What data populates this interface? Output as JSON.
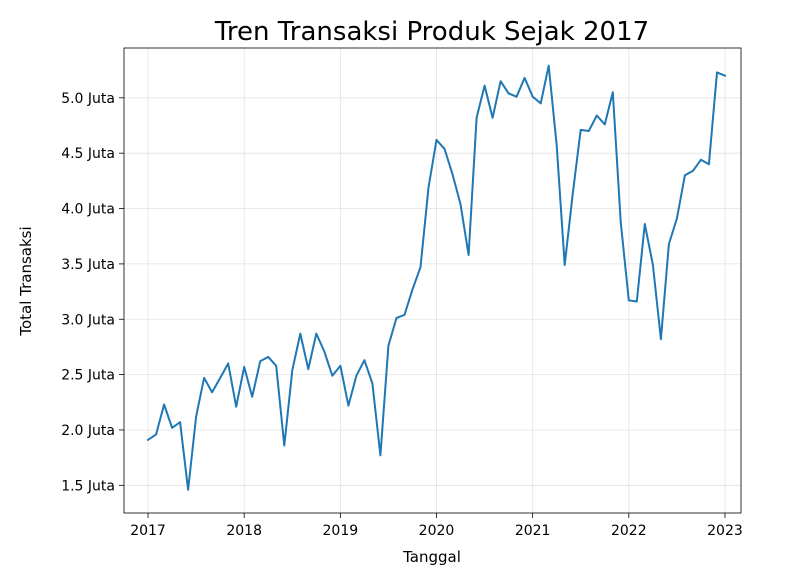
{
  "chart_data": {
    "type": "line",
    "title": "Tren Transaksi Produk Sejak 2017",
    "xlabel": "Tanggal",
    "ylabel": "Total Transaksi",
    "grid": true,
    "color": "#1f77b4",
    "xlim": [
      "2016-10",
      "2023-03"
    ],
    "ylim": [
      1.25,
      5.45
    ],
    "x_ticks": [
      {
        "value": "2017-01",
        "label": "2017"
      },
      {
        "value": "2018-01",
        "label": "2018"
      },
      {
        "value": "2019-01",
        "label": "2019"
      },
      {
        "value": "2020-01",
        "label": "2020"
      },
      {
        "value": "2021-01",
        "label": "2021"
      },
      {
        "value": "2022-01",
        "label": "2022"
      },
      {
        "value": "2023-01",
        "label": "2023"
      }
    ],
    "y_ticks": [
      {
        "value": 1.5,
        "label": "1.5 Juta"
      },
      {
        "value": 2.0,
        "label": "2.0 Juta"
      },
      {
        "value": 2.5,
        "label": "2.5 Juta"
      },
      {
        "value": 3.0,
        "label": "3.0 Juta"
      },
      {
        "value": 3.5,
        "label": "3.5 Juta"
      },
      {
        "value": 4.0,
        "label": "4.0 Juta"
      },
      {
        "value": 4.5,
        "label": "4.5 Juta"
      },
      {
        "value": 5.0,
        "label": "5.0 Juta"
      }
    ],
    "x": [
      "2017-01",
      "2017-02",
      "2017-03",
      "2017-04",
      "2017-05",
      "2017-06",
      "2017-07",
      "2017-08",
      "2017-09",
      "2017-10",
      "2017-11",
      "2017-12",
      "2018-01",
      "2018-02",
      "2018-03",
      "2018-04",
      "2018-05",
      "2018-06",
      "2018-07",
      "2018-08",
      "2018-09",
      "2018-10",
      "2018-11",
      "2018-12",
      "2019-01",
      "2019-02",
      "2019-03",
      "2019-04",
      "2019-05",
      "2019-06",
      "2019-07",
      "2019-08",
      "2019-09",
      "2019-10",
      "2019-11",
      "2019-12",
      "2020-01",
      "2020-02",
      "2020-03",
      "2020-04",
      "2020-05",
      "2020-06",
      "2020-07",
      "2020-08",
      "2020-09",
      "2020-10",
      "2020-11",
      "2020-12",
      "2021-01",
      "2021-02",
      "2021-03",
      "2021-04",
      "2021-05",
      "2021-06",
      "2021-07",
      "2021-08",
      "2021-09",
      "2021-10",
      "2021-11",
      "2021-12",
      "2022-01",
      "2022-02",
      "2022-03",
      "2022-04",
      "2022-05",
      "2022-06",
      "2022-07",
      "2022-08",
      "2022-09",
      "2022-10",
      "2022-11",
      "2022-12",
      "2023-01"
    ],
    "y": [
      1.91,
      1.96,
      2.23,
      2.02,
      2.07,
      1.46,
      2.12,
      2.47,
      2.34,
      2.47,
      2.6,
      2.21,
      2.57,
      2.3,
      2.62,
      2.66,
      2.58,
      1.86,
      2.54,
      2.87,
      2.55,
      2.87,
      2.71,
      2.49,
      2.58,
      2.22,
      2.49,
      2.63,
      2.42,
      1.77,
      2.76,
      3.01,
      3.04,
      3.27,
      3.47,
      4.19,
      4.62,
      4.54,
      4.31,
      4.04,
      3.58,
      4.82,
      5.11,
      4.82,
      5.15,
      5.04,
      5.01,
      5.18,
      5.01,
      4.95,
      5.29,
      4.57,
      3.49,
      4.13,
      4.71,
      4.7,
      4.84,
      4.76,
      5.05,
      3.87,
      3.17,
      3.16,
      3.86,
      3.49,
      2.82,
      3.68,
      3.91,
      4.3,
      4.34,
      4.44,
      4.4,
      5.23,
      5.2
    ]
  }
}
